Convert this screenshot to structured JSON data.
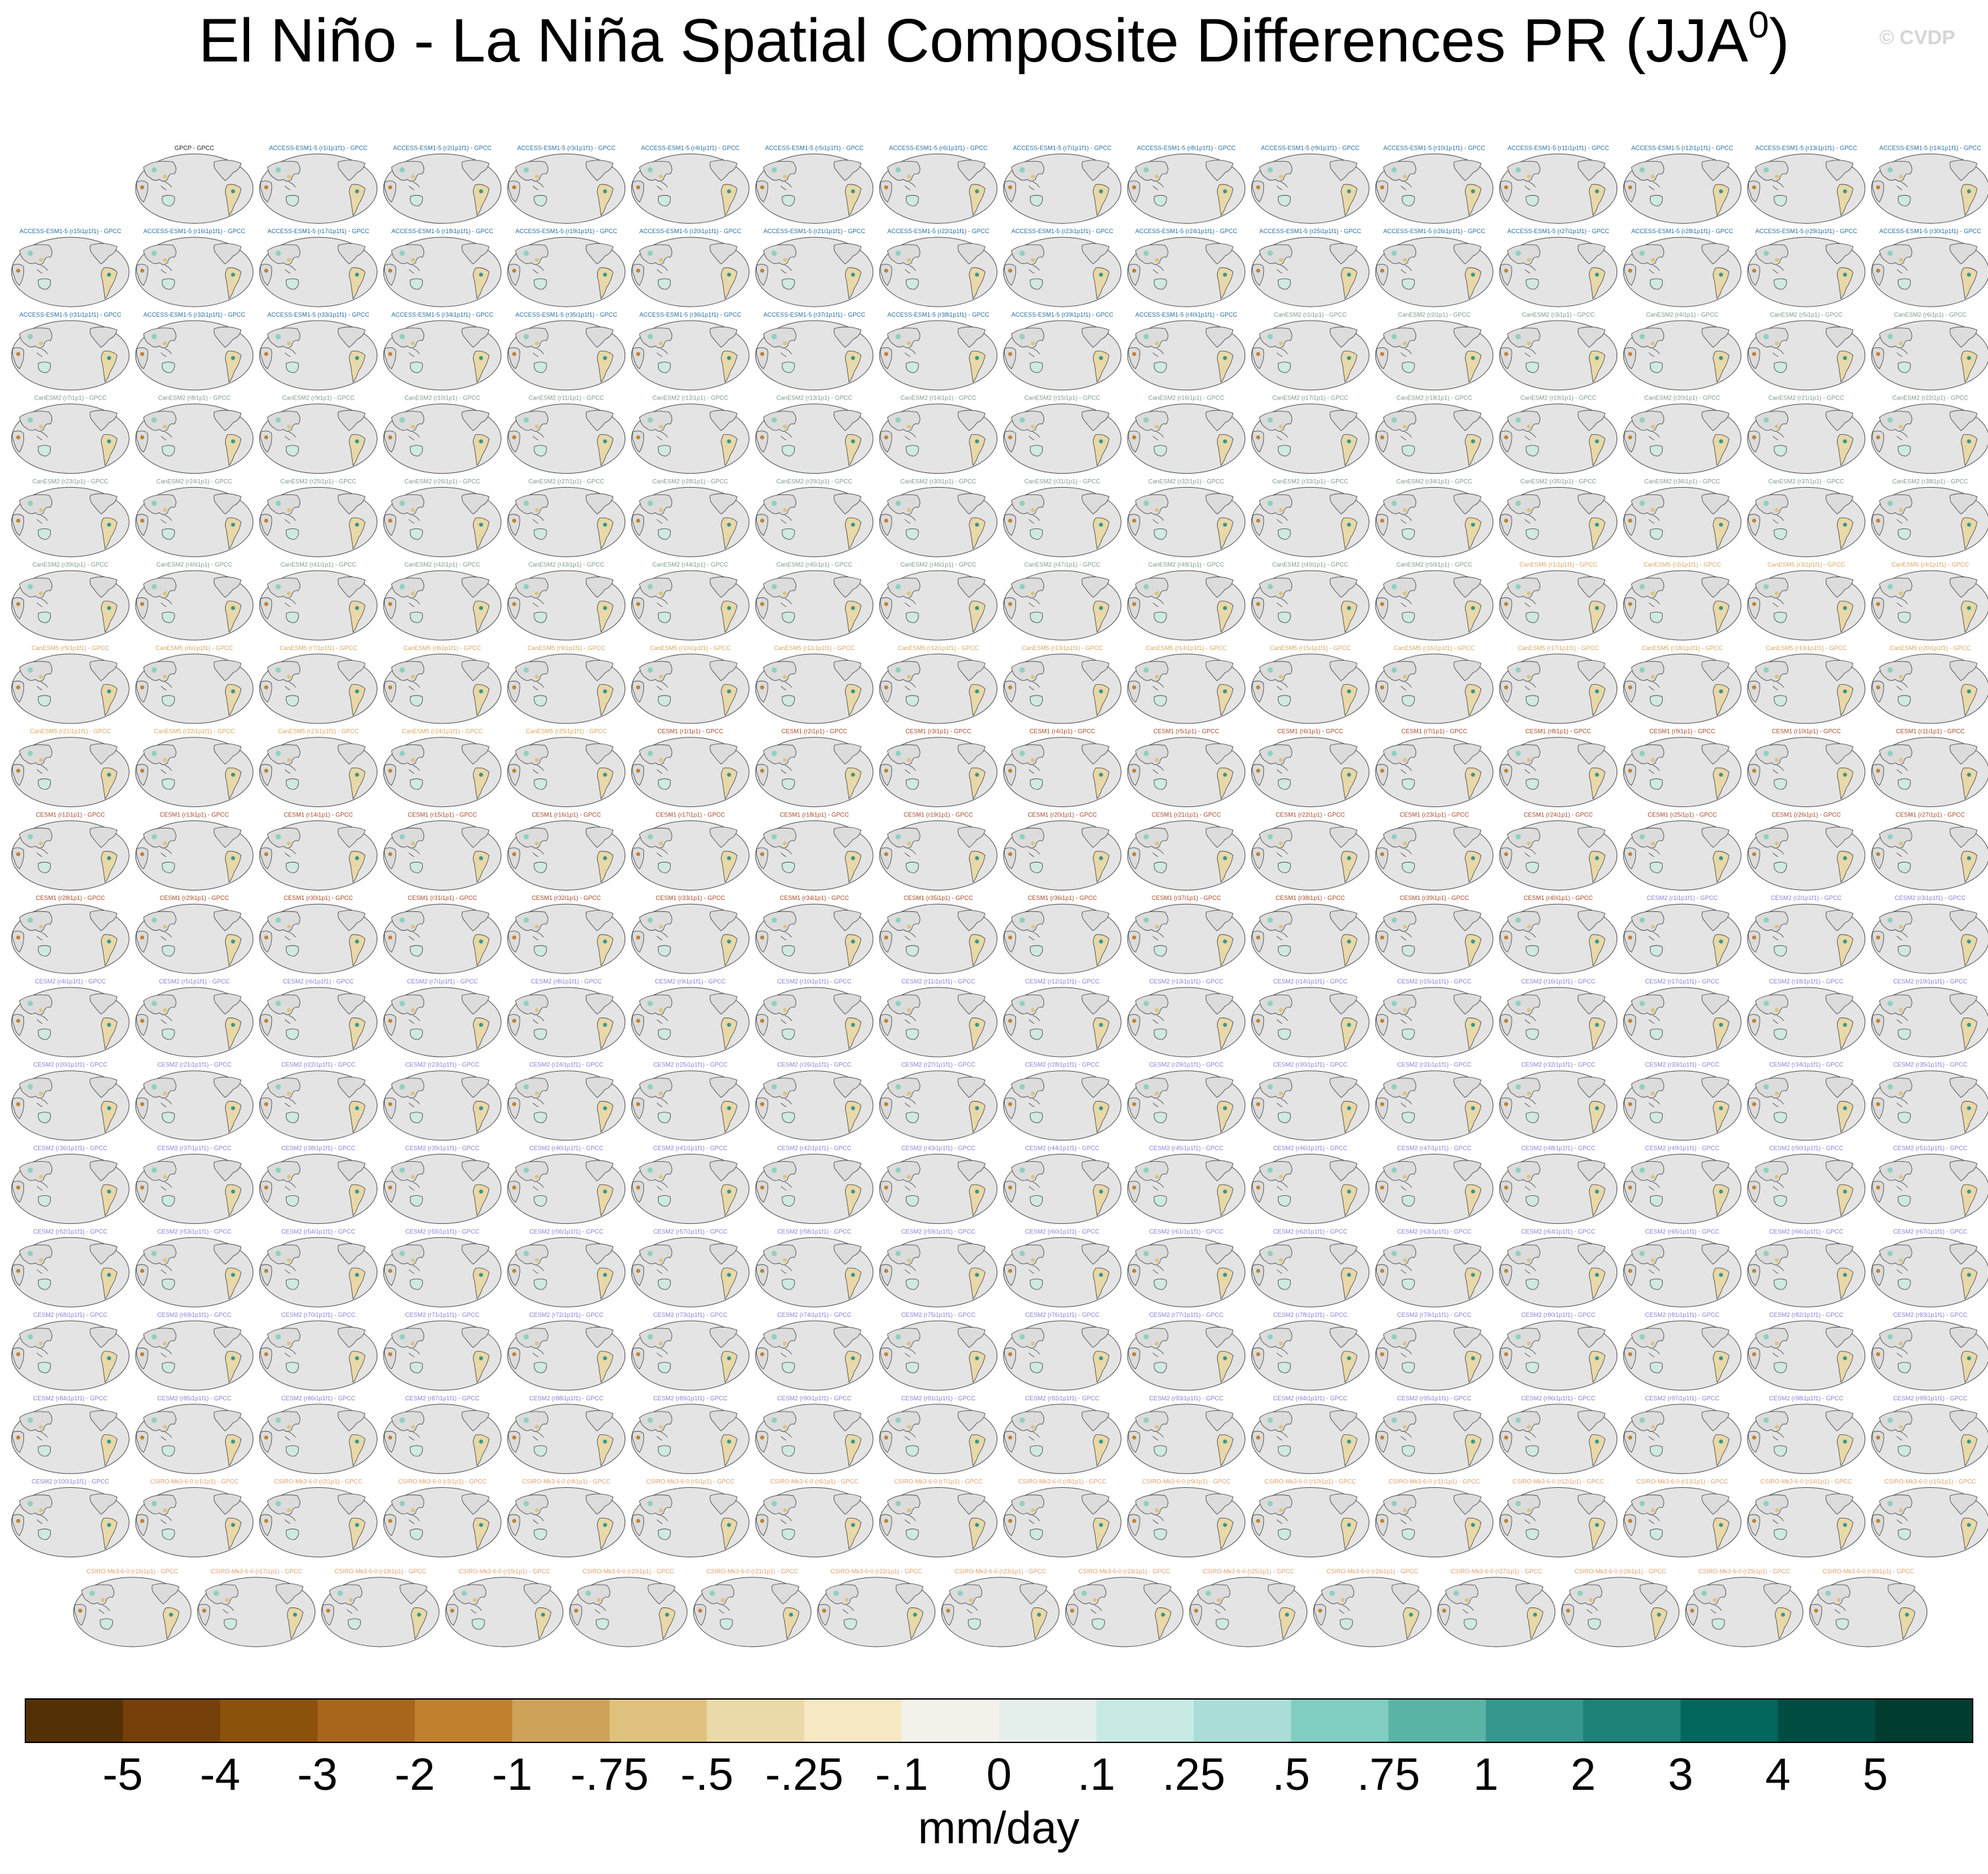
{
  "title": "El Niño - La Niña Spatial Composite Differences PR (JJA",
  "title_superscript": "0",
  "title_end": ")",
  "watermark": "© CVDP",
  "models": [
    {
      "color": "#222222",
      "panels": [
        "GPCP - GPCC"
      ]
    },
    {
      "color": "#2a6f9e",
      "panels": [
        "ACCESS-ESM1-5 (r1i1p1f1) - GPCC",
        "ACCESS-ESM1-5 (r2i1p1f1) - GPCC",
        "ACCESS-ESM1-5 (r3i1p1f1) - GPCC",
        "ACCESS-ESM1-5 (r4i1p1f1) - GPCC",
        "ACCESS-ESM1-5 (r5i1p1f1) - GPCC",
        "ACCESS-ESM1-5 (r6i1p1f1) - GPCC",
        "ACCESS-ESM1-5 (r7i1p1f1) - GPCC",
        "ACCESS-ESM1-5 (r8i1p1f1) - GPCC",
        "ACCESS-ESM1-5 (r9i1p1f1) - GPCC",
        "ACCESS-ESM1-5 (r10i1p1f1) - GPCC",
        "ACCESS-ESM1-5 (r11i1p1f1) - GPCC",
        "ACCESS-ESM1-5 (r12i1p1f1) - GPCC",
        "ACCESS-ESM1-5 (r13i1p1f1) - GPCC",
        "ACCESS-ESM1-5 (r14i1p1f1) - GPCC",
        "ACCESS-ESM1-5 (r15i1p1f1) - GPCC",
        "ACCESS-ESM1-5 (r16i1p1f1) - GPCC",
        "ACCESS-ESM1-5 (r17i1p1f1) - GPCC",
        "ACCESS-ESM1-5 (r18i1p1f1) - GPCC",
        "ACCESS-ESM1-5 (r19i1p1f1) - GPCC",
        "ACCESS-ESM1-5 (r20i1p1f1) - GPCC",
        "ACCESS-ESM1-5 (r21i1p1f1) - GPCC",
        "ACCESS-ESM1-5 (r22i1p1f1) - GPCC",
        "ACCESS-ESM1-5 (r23i1p1f1) - GPCC",
        "ACCESS-ESM1-5 (r24i1p1f1) - GPCC",
        "ACCESS-ESM1-5 (r25i1p1f1) - GPCC",
        "ACCESS-ESM1-5 (r26i1p1f1) - GPCC",
        "ACCESS-ESM1-5 (r27i1p1f1) - GPCC",
        "ACCESS-ESM1-5 (r28i1p1f1) - GPCC",
        "ACCESS-ESM1-5 (r29i1p1f1) - GPCC",
        "ACCESS-ESM1-5 (r30i1p1f1) - GPCC",
        "ACCESS-ESM1-5 (r31i1p1f1) - GPCC",
        "ACCESS-ESM1-5 (r32i1p1f1) - GPCC",
        "ACCESS-ESM1-5 (r33i1p1f1) - GPCC",
        "ACCESS-ESM1-5 (r34i1p1f1) - GPCC",
        "ACCESS-ESM1-5 (r35i1p1f1) - GPCC",
        "ACCESS-ESM1-5 (r36i1p1f1) - GPCC",
        "ACCESS-ESM1-5 (r37i1p1f1) - GPCC",
        "ACCESS-ESM1-5 (r38i1p1f1) - GPCC",
        "ACCESS-ESM1-5 (r39i1p1f1) - GPCC",
        "ACCESS-ESM1-5 (r40i1p1f1) - GPCC"
      ]
    },
    {
      "color": "#7f9c88",
      "panels": [
        "CanESM2 (r1i1p1) - GPCC",
        "CanESM2 (r2i1p1) - GPCC",
        "CanESM2 (r3i1p1) - GPCC",
        "CanESM2 (r4i1p1) - GPCC",
        "CanESM2 (r5i1p1) - GPCC",
        "CanESM2 (r6i1p1) - GPCC",
        "CanESM2 (r7i1p1) - GPCC",
        "CanESM2 (r8i1p1) - GPCC",
        "CanESM2 (r9i1p1) - GPCC",
        "CanESM2 (r10i1p1) - GPCC",
        "CanESM2 (r11i1p1) - GPCC",
        "CanESM2 (r12i1p1) - GPCC",
        "CanESM2 (r13i1p1) - GPCC",
        "CanESM2 (r14i1p1) - GPCC",
        "CanESM2 (r15i1p1) - GPCC",
        "CanESM2 (r16i1p1) - GPCC",
        "CanESM2 (r17i1p1) - GPCC",
        "CanESM2 (r18i1p1) - GPCC",
        "CanESM2 (r19i1p1) - GPCC",
        "CanESM2 (r20i1p1) - GPCC",
        "CanESM2 (r21i1p1) - GPCC",
        "CanESM2 (r22i1p1) - GPCC",
        "CanESM2 (r23i1p1) - GPCC",
        "CanESM2 (r24i1p1) - GPCC",
        "CanESM2 (r25i1p1) - GPCC",
        "CanESM2 (r26i1p1) - GPCC",
        "CanESM2 (r27i1p1) - GPCC",
        "CanESM2 (r28i1p1) - GPCC",
        "CanESM2 (r29i1p1) - GPCC",
        "CanESM2 (r30i1p1) - GPCC",
        "CanESM2 (r31i1p1) - GPCC",
        "CanESM2 (r32i1p1) - GPCC",
        "CanESM2 (r33i1p1) - GPCC",
        "CanESM2 (r34i1p1) - GPCC",
        "CanESM2 (r35i1p1) - GPCC",
        "CanESM2 (r36i1p1) - GPCC",
        "CanESM2 (r37i1p1) - GPCC",
        "CanESM2 (r38i1p1) - GPCC",
        "CanESM2 (r39i1p1) - GPCC",
        "CanESM2 (r40i1p1) - GPCC",
        "CanESM2 (r41i1p1) - GPCC",
        "CanESM2 (r42i1p1) - GPCC",
        "CanESM2 (r43i1p1) - GPCC",
        "CanESM2 (r44i1p1) - GPCC",
        "CanESM2 (r45i1p1) - GPCC",
        "CanESM2 (r46i1p1) - GPCC",
        "CanESM2 (r47i1p1) - GPCC",
        "CanESM2 (r48i1p1) - GPCC",
        "CanESM2 (r49i1p1) - GPCC",
        "CanESM2 (r50i1p1) - GPCC"
      ]
    },
    {
      "color": "#d8a860",
      "panels": [
        "CanESM5 (r1i1p1f1) - GPCC",
        "CanESM5 (r2i1p1f1) - GPCC",
        "CanESM5 (r3i1p1f1) - GPCC",
        "CanESM5 (r4i1p1f1) - GPCC",
        "CanESM5 (r5i1p1f1) - GPCC",
        "CanESM5 (r6i1p1f1) - GPCC",
        "CanESM5 (r7i1p1f1) - GPCC",
        "CanESM5 (r8i1p1f1) - GPCC",
        "CanESM5 (r9i1p1f1) - GPCC",
        "CanESM5 (r10i1p1f1) - GPCC",
        "CanESM5 (r11i1p1f1) - GPCC",
        "CanESM5 (r12i1p1f1) - GPCC",
        "CanESM5 (r13i1p1f1) - GPCC",
        "CanESM5 (r14i1p1f1) - GPCC",
        "CanESM5 (r15i1p1f1) - GPCC",
        "CanESM5 (r16i1p1f1) - GPCC",
        "CanESM5 (r17i1p1f1) - GPCC",
        "CanESM5 (r18i1p1f1) - GPCC",
        "CanESM5 (r19i1p1f1) - GPCC",
        "CanESM5 (r20i1p1f1) - GPCC",
        "CanESM5 (r21i1p1f1) - GPCC",
        "CanESM5 (r22i1p1f1) - GPCC",
        "CanESM5 (r23i1p1f1) - GPCC",
        "CanESM5 (r24i1p1f1) - GPCC",
        "CanESM5 (r25i1p1f1) - GPCC"
      ]
    },
    {
      "color": "#a84a2a",
      "panels": [
        "CESM1 (r1i1p1) - GPCC",
        "CESM1 (r2i1p1) - GPCC",
        "CESM1 (r3i1p1) - GPCC",
        "CESM1 (r4i1p1) - GPCC",
        "CESM1 (r5i1p1) - GPCC",
        "CESM1 (r6i1p1) - GPCC",
        "CESM1 (r7i1p1) - GPCC",
        "CESM1 (r8i1p1) - GPCC",
        "CESM1 (r9i1p1) - GPCC",
        "CESM1 (r10i1p1) - GPCC",
        "CESM1 (r11i1p1) - GPCC",
        "CESM1 (r12i1p1) - GPCC",
        "CESM1 (r13i1p1) - GPCC",
        "CESM1 (r14i1p1) - GPCC",
        "CESM1 (r15i1p1) - GPCC",
        "CESM1 (r16i1p1) - GPCC",
        "CESM1 (r17i1p1) - GPCC",
        "CESM1 (r18i1p1) - GPCC",
        "CESM1 (r19i1p1) - GPCC",
        "CESM1 (r20i1p1) - GPCC",
        "CESM1 (r21i1p1) - GPCC",
        "CESM1 (r22i1p1) - GPCC",
        "CESM1 (r23i1p1) - GPCC",
        "CESM1 (r24i1p1) - GPCC",
        "CESM1 (r25i1p1) - GPCC",
        "CESM1 (r26i1p1) - GPCC",
        "CESM1 (r27i1p1) - GPCC",
        "CESM1 (r28i1p1) - GPCC",
        "CESM1 (r29i1p1) - GPCC",
        "CESM1 (r30i1p1) - GPCC",
        "CESM1 (r31i1p1) - GPCC",
        "CESM1 (r32i1p1) - GPCC",
        "CESM1 (r33i1p1) - GPCC",
        "CESM1 (r34i1p1) - GPCC",
        "CESM1 (r35i1p1) - GPCC",
        "CESM1 (r36i1p1) - GPCC",
        "CESM1 (r37i1p1) - GPCC",
        "CESM1 (r38i1p1) - GPCC",
        "CESM1 (r39i1p1) - GPCC",
        "CESM1 (r40i1p1) - GPCC"
      ]
    },
    {
      "color": "#8a80d8",
      "panels": [
        "CESM2 (r1i1p1f1) - GPCC",
        "CESM2 (r2i1p1f1) - GPCC",
        "CESM2 (r3i1p1f1) - GPCC",
        "CESM2 (r4i1p1f1) - GPCC",
        "CESM2 (r5i1p1f1) - GPCC",
        "CESM2 (r6i1p1f1) - GPCC",
        "CESM2 (r7i1p1f1) - GPCC",
        "CESM2 (r8i1p1f1) - GPCC",
        "CESM2 (r9i1p1f1) - GPCC",
        "CESM2 (r10i1p1f1) - GPCC",
        "CESM2 (r11i1p1f1) - GPCC",
        "CESM2 (r12i1p1f1) - GPCC",
        "CESM2 (r13i1p1f1) - GPCC",
        "CESM2 (r14i1p1f1) - GPCC",
        "CESM2 (r15i1p1f1) - GPCC",
        "CESM2 (r16i1p1f1) - GPCC",
        "CESM2 (r17i1p1f1) - GPCC",
        "CESM2 (r18i1p1f1) - GPCC",
        "CESM2 (r19i1p1f1) - GPCC",
        "CESM2 (r20i1p1f1) - GPCC",
        "CESM2 (r21i1p1f1) - GPCC",
        "CESM2 (r22i1p1f1) - GPCC",
        "CESM2 (r23i1p1f1) - GPCC",
        "CESM2 (r24i1p1f1) - GPCC",
        "CESM2 (r25i1p1f1) - GPCC",
        "CESM2 (r26i1p1f1) - GPCC",
        "CESM2 (r27i1p1f1) - GPCC",
        "CESM2 (r28i1p1f1) - GPCC",
        "CESM2 (r29i1p1f1) - GPCC",
        "CESM2 (r30i1p1f1) - GPCC",
        "CESM2 (r31i1p1f1) - GPCC",
        "CESM2 (r32i1p1f1) - GPCC",
        "CESM2 (r33i1p1f1) - GPCC",
        "CESM2 (r34i1p1f1) - GPCC",
        "CESM2 (r35i1p1f1) - GPCC",
        "CESM2 (r36i1p1f1) - GPCC",
        "CESM2 (r37i1p1f1) - GPCC",
        "CESM2 (r38i1p1f1) - GPCC",
        "CESM2 (r39i1p1f1) - GPCC",
        "CESM2 (r40i1p1f1) - GPCC",
        "CESM2 (r41i1p1f1) - GPCC",
        "CESM2 (r42i1p1f1) - GPCC",
        "CESM2 (r43i1p1f1) - GPCC",
        "CESM2 (r44i1p1f1) - GPCC",
        "CESM2 (r45i1p1f1) - GPCC",
        "CESM2 (r46i1p1f1) - GPCC",
        "CESM2 (r47i1p1f1) - GPCC",
        "CESM2 (r48i1p1f1) - GPCC",
        "CESM2 (r49i1p1f1) - GPCC",
        "CESM2 (r50i1p1f1) - GPCC",
        "CESM2 (r51i1p1f1) - GPCC",
        "CESM2 (r52i1p1f1) - GPCC",
        "CESM2 (r53i1p1f1) - GPCC",
        "CESM2 (r54i1p1f1) - GPCC",
        "CESM2 (r55i1p1f1) - GPCC",
        "CESM2 (r56i1p1f1) - GPCC",
        "CESM2 (r57i1p1f1) - GPCC",
        "CESM2 (r58i1p1f1) - GPCC",
        "CESM2 (r59i1p1f1) - GPCC",
        "CESM2 (r60i1p1f1) - GPCC",
        "CESM2 (r61i1p1f1) - GPCC",
        "CESM2 (r62i1p1f1) - GPCC",
        "CESM2 (r63i1p1f1) - GPCC",
        "CESM2 (r64i1p1f1) - GPCC",
        "CESM2 (r65i1p1f1) - GPCC",
        "CESM2 (r66i1p1f1) - GPCC",
        "CESM2 (r67i1p1f1) - GPCC",
        "CESM2 (r68i1p1f1) - GPCC",
        "CESM2 (r69i1p1f1) - GPCC",
        "CESM2 (r70i1p1f1) - GPCC",
        "CESM2 (r71i1p1f1) - GPCC",
        "CESM2 (r72i1p1f1) - GPCC",
        "CESM2 (r73i1p1f1) - GPCC",
        "CESM2 (r74i1p1f1) - GPCC",
        "CESM2 (r75i1p1f1) - GPCC",
        "CESM2 (r76i1p1f1) - GPCC",
        "CESM2 (r77i1p1f1) - GPCC",
        "CESM2 (r78i1p1f1) - GPCC",
        "CESM2 (r79i1p1f1) - GPCC",
        "CESM2 (r80i1p1f1) - GPCC",
        "CESM2 (r81i1p1f1) - GPCC",
        "CESM2 (r82i1p1f1) - GPCC",
        "CESM2 (r83i1p1f1) - GPCC",
        "CESM2 (r84i1p1f1) - GPCC",
        "CESM2 (r85i1p1f1) - GPCC",
        "CESM2 (r86i1p1f1) - GPCC",
        "CESM2 (r87i1p1f1) - GPCC",
        "CESM2 (r88i1p1f1) - GPCC",
        "CESM2 (r89i1p1f1) - GPCC",
        "CESM2 (r90i1p1f1) - GPCC",
        "CESM2 (r91i1p1f1) - GPCC",
        "CESM2 (r92i1p1f1) - GPCC",
        "CESM2 (r93i1p1f1) - GPCC",
        "CESM2 (r94i1p1f1) - GPCC",
        "CESM2 (r95i1p1f1) - GPCC",
        "CESM2 (r96i1p1f1) - GPCC",
        "CESM2 (r97i1p1f1) - GPCC",
        "CESM2 (r98i1p1f1) - GPCC",
        "CESM2 (r99i1p1f1) - GPCC",
        "CESM2 (r100i1p1f1) - GPCC"
      ]
    },
    {
      "color": "#e0a070",
      "panels": [
        "CSIRO-Mk3-6-0 (r1i1p1) - GPCC",
        "CSIRO-Mk3-6-0 (r2i1p1) - GPCC",
        "CSIRO-Mk3-6-0 (r3i1p1) - GPCC",
        "CSIRO-Mk3-6-0 (r4i1p1) - GPCC",
        "CSIRO-Mk3-6-0 (r5i1p1) - GPCC",
        "CSIRO-Mk3-6-0 (r6i1p1) - GPCC",
        "CSIRO-Mk3-6-0 (r7i1p1) - GPCC",
        "CSIRO-Mk3-6-0 (r8i1p1) - GPCC",
        "CSIRO-Mk3-6-0 (r9i1p1) - GPCC",
        "CSIRO-Mk3-6-0 (r10i1p1) - GPCC",
        "CSIRO-Mk3-6-0 (r11i1p1) - GPCC",
        "CSIRO-Mk3-6-0 (r12i1p1) - GPCC",
        "CSIRO-Mk3-6-0 (r13i1p1) - GPCC",
        "CSIRO-Mk3-6-0 (r14i1p1) - GPCC",
        "CSIRO-Mk3-6-0 (r15i1p1) - GPCC",
        "CSIRO-Mk3-6-0 (r16i1p1) - GPCC",
        "CSIRO-Mk3-6-0 (r17i1p1) - GPCC",
        "CSIRO-Mk3-6-0 (r18i1p1) - GPCC",
        "CSIRO-Mk3-6-0 (r19i1p1) - GPCC",
        "CSIRO-Mk3-6-0 (r20i1p1) - GPCC",
        "CSIRO-Mk3-6-0 (r21i1p1) - GPCC",
        "CSIRO-Mk3-6-0 (r22i1p1) - GPCC",
        "CSIRO-Mk3-6-0 (r23i1p1) - GPCC",
        "CSIRO-Mk3-6-0 (r24i1p1) - GPCC",
        "CSIRO-Mk3-6-0 (r25i1p1) - GPCC",
        "CSIRO-Mk3-6-0 (r26i1p1) - GPCC",
        "CSIRO-Mk3-6-0 (r27i1p1) - GPCC",
        "CSIRO-Mk3-6-0 (r28i1p1) - GPCC",
        "CSIRO-Mk3-6-0 (r29i1p1) - GPCC",
        "CSIRO-Mk3-6-0 (r30i1p1) - GPCC"
      ]
    }
  ],
  "colorbar": {
    "colors": [
      "#543005",
      "#754009",
      "#8c510a",
      "#a6661c",
      "#bf812d",
      "#cfa25a",
      "#dfc27d",
      "#ecd9a9",
      "#f6e8c3",
      "#f4f1ea",
      "#e5efec",
      "#c7eae5",
      "#a9ddd5",
      "#80cdc1",
      "#5ab4a6",
      "#35978f",
      "#1d8277",
      "#01665e",
      "#014d43",
      "#003c30"
    ],
    "ticks": [
      -5,
      -4,
      -3,
      -2,
      -1,
      {
        "value": -0.75,
        "label": "-.75"
      },
      {
        "value": -0.5,
        "label": "-.5"
      },
      {
        "value": -0.25,
        "label": "-.25"
      },
      {
        "value": -0.1,
        "label": "-.1"
      },
      0,
      {
        "value": 0.1,
        "label": ".1"
      },
      {
        "value": 0.25,
        "label": ".25"
      },
      {
        "value": 0.5,
        "label": ".5"
      },
      {
        "value": 0.75,
        "label": ".75"
      },
      1,
      2,
      3,
      4,
      5
    ],
    "unit": "mm/day"
  }
}
